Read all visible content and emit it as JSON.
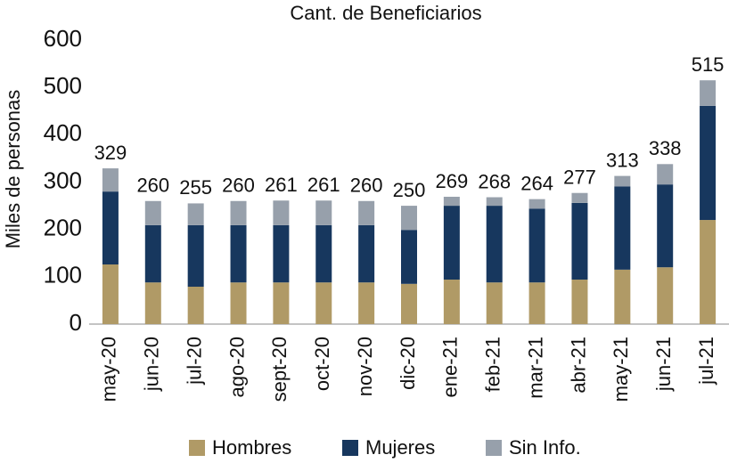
{
  "chart_data": {
    "type": "stacked_bar",
    "title": "Cant. de Beneficiarios",
    "y_label": "Miles de personas",
    "categories": [
      "may-20",
      "jun-20",
      "jul-20",
      "ago-20",
      "sept-20",
      "oct-20",
      "nov-20",
      "dic-20",
      "ene-21",
      "feb-21",
      "mar-21",
      "abr-21",
      "may-21",
      "jun-21",
      "jul-21"
    ],
    "series": [
      {
        "name": "Hombres",
        "color": "#b09a66",
        "values": [
          126,
          88,
          79,
          88,
          88,
          88,
          88,
          85,
          94,
          88,
          88,
          94,
          115,
          120,
          220
        ]
      },
      {
        "name": "Mujeres",
        "color": "#17375e",
        "values": [
          154,
          121,
          130,
          121,
          121,
          121,
          121,
          114,
          156,
          162,
          156,
          162,
          176,
          175,
          241
        ]
      },
      {
        "name": "Sin Info.",
        "color": "#97a0ab",
        "values": [
          49,
          51,
          46,
          51,
          52,
          52,
          51,
          51,
          19,
          18,
          20,
          21,
          22,
          43,
          54
        ]
      }
    ],
    "totals": [
      329,
      260,
      255,
      260,
      261,
      261,
      260,
      250,
      269,
      268,
      264,
      277,
      313,
      338,
      515
    ],
    "ylim": [
      0,
      600
    ],
    "yticks": [
      0,
      100,
      200,
      300,
      400,
      500,
      600
    ],
    "legend": "bottom"
  }
}
